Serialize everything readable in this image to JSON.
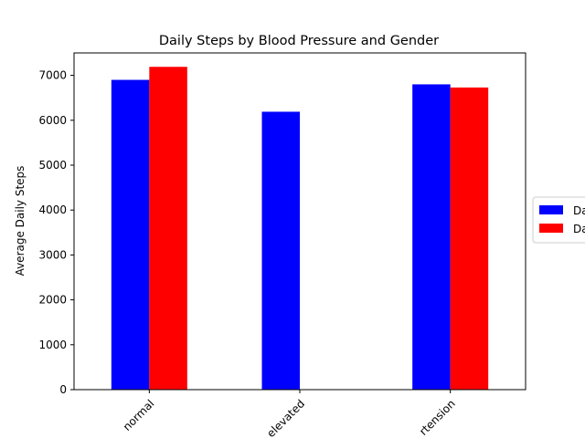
{
  "chart_data": {
    "type": "bar",
    "title": "Daily Steps by Blood Pressure and Gender",
    "xlabel": "",
    "ylabel": "Average Daily Steps",
    "categories": [
      "normal",
      "elevated",
      "hypertension"
    ],
    "category_labels_visible": [
      "normal",
      "elevated",
      "rtension"
    ],
    "series": [
      {
        "name": "Da",
        "color": "#0000ff",
        "values": [
          6900,
          6190,
          6800
        ]
      },
      {
        "name": "Da",
        "color": "#ff0000",
        "values": [
          7190,
          null,
          6730
        ]
      }
    ],
    "ylim": [
      0,
      7500
    ],
    "yticks": [
      0,
      1000,
      2000,
      3000,
      4000,
      5000,
      6000,
      7000
    ],
    "grid": false,
    "legend_position": "right, partially clipped"
  }
}
